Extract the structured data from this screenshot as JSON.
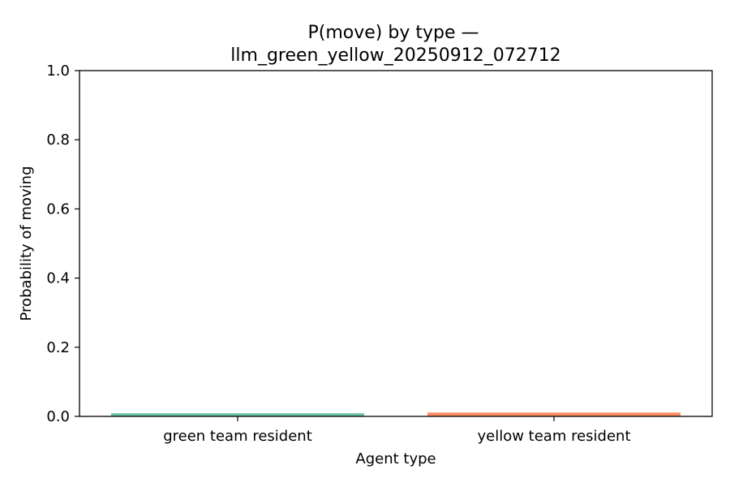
{
  "chart_data": {
    "type": "bar",
    "title_lines": [
      "P(move) by type —",
      "llm_green_yellow_20250912_072712"
    ],
    "xlabel": "Agent type",
    "ylabel": "Probability of moving",
    "ylim": [
      0,
      1.0
    ],
    "yticks": [
      0.0,
      0.2,
      0.4,
      0.6,
      0.8,
      1.0
    ],
    "ytick_labels": [
      "0.0",
      "0.2",
      "0.4",
      "0.6",
      "0.8",
      "1.0"
    ],
    "categories": [
      "green team resident",
      "yellow team resident"
    ],
    "values": [
      0.009,
      0.011
    ],
    "colors": [
      "#66c2a5",
      "#fc8d62"
    ],
    "grid": false,
    "legend": "none"
  }
}
